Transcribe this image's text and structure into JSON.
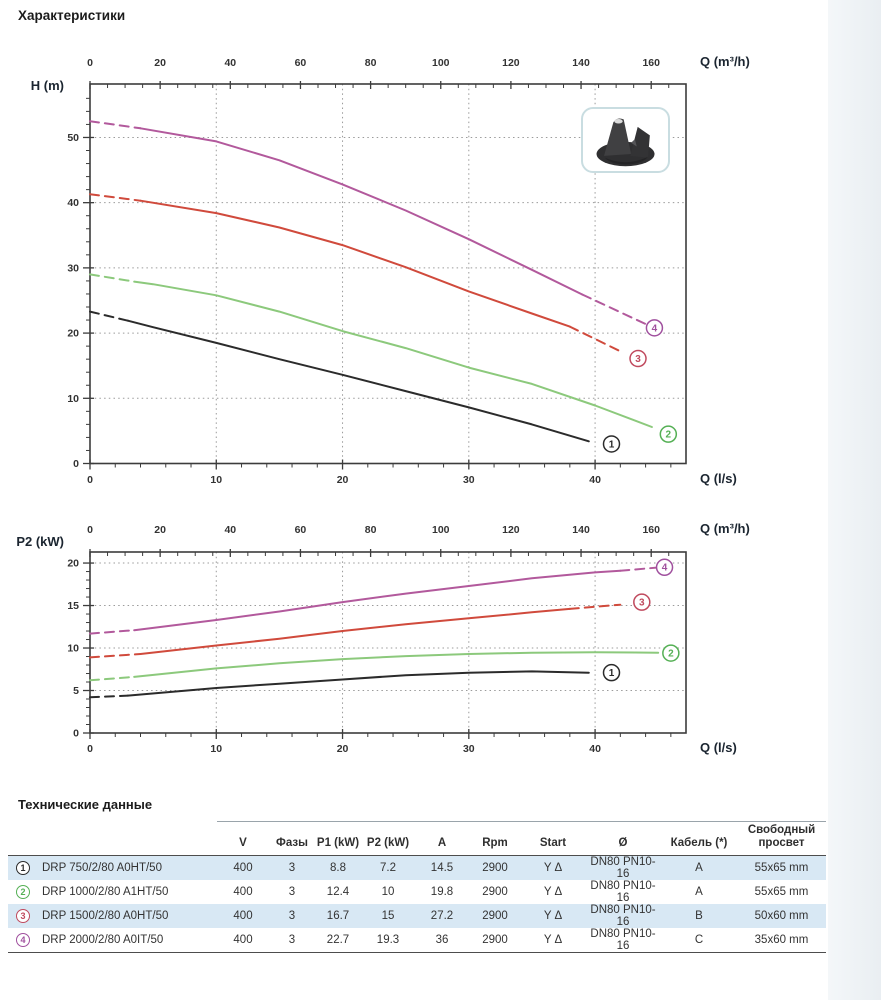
{
  "page": {
    "title": "Характеристики"
  },
  "pump_image": {
    "alt": "vortex-impeller-photo"
  },
  "colors": {
    "accent_row_blue": "#d8e8f4",
    "curve1": "#2b2b2b",
    "curve2": "#8cc97c",
    "curve3": "#d04a3c",
    "curve4": "#b2599c",
    "circle1": "#2b2b2b",
    "circle2": "#55b055",
    "circle3": "#c04a5e",
    "circle4": "#a0509e"
  },
  "chart_data": [
    {
      "type": "line",
      "id": "chart1",
      "ylabel": "H (m)",
      "xlabel_top": "Q (m³/h)",
      "xlabel_bottom": "Q (l/s)",
      "x_top_ticks": [
        0,
        20,
        40,
        60,
        80,
        100,
        120,
        140,
        160
      ],
      "x_bottom_ticks": [
        0,
        10,
        20,
        30,
        40
      ],
      "y_ticks": [
        0,
        10,
        20,
        30,
        40,
        50
      ],
      "xlim": [
        0,
        47.2
      ],
      "ylim": [
        0,
        58.2
      ],
      "grid_x": [
        10,
        20,
        30,
        40
      ],
      "grid_y": [
        10,
        20,
        30,
        40,
        50
      ],
      "grid": "dotted",
      "series": [
        {
          "num": "1",
          "name": "DRP 750/2/80 A0HT/50",
          "color": "#2b2b2b",
          "circle_color": "#2b2b2b",
          "lead": [
            [
              0,
              23.3
            ],
            [
              3,
              21.9
            ]
          ],
          "main": [
            [
              3,
              21.9
            ],
            [
              5,
              20.9
            ],
            [
              10,
              18.5
            ],
            [
              15,
              16.0
            ],
            [
              20,
              13.6
            ],
            [
              25,
              11.1
            ],
            [
              30,
              8.6
            ],
            [
              35,
              6.0
            ],
            [
              39.5,
              3.4
            ]
          ],
          "tail": [],
          "label_at": [
            41.3,
            3.0
          ]
        },
        {
          "num": "2",
          "name": "DRP 1000/2/80 A1HT/50",
          "color": "#8cc97c",
          "circle_color": "#55b055",
          "lead": [
            [
              0,
              29.0
            ],
            [
              3.5,
              27.9
            ]
          ],
          "main": [
            [
              3.5,
              27.9
            ],
            [
              5,
              27.5
            ],
            [
              10,
              25.8
            ],
            [
              15,
              23.3
            ],
            [
              20,
              20.3
            ],
            [
              25,
              17.7
            ],
            [
              30,
              14.7
            ],
            [
              35,
              12.2
            ],
            [
              40,
              8.9
            ],
            [
              44.5,
              5.6
            ]
          ],
          "tail": [],
          "label_at": [
            45.8,
            4.5
          ]
        },
        {
          "num": "3",
          "name": "DRP 1500/2/80 A0HT/50",
          "color": "#d04a3c",
          "circle_color": "#c04a5e",
          "lead": [
            [
              0,
              41.3
            ],
            [
              4,
              40.3
            ]
          ],
          "main": [
            [
              4,
              40.3
            ],
            [
              10,
              38.4
            ],
            [
              15,
              36.2
            ],
            [
              20,
              33.5
            ],
            [
              25,
              30.1
            ],
            [
              30,
              26.4
            ],
            [
              35,
              23.0
            ],
            [
              38,
              21.0
            ]
          ],
          "tail": [
            [
              38,
              21.0
            ],
            [
              42,
              17.2
            ]
          ],
          "label_at": [
            43.4,
            16.1
          ]
        },
        {
          "num": "4",
          "name": "DRP 2000/2/80 A0IT/50",
          "color": "#b2599c",
          "circle_color": "#a0509e",
          "lead": [
            [
              0,
              52.5
            ],
            [
              4,
              51.4
            ]
          ],
          "main": [
            [
              4,
              51.4
            ],
            [
              10,
              49.4
            ],
            [
              15,
              46.5
            ],
            [
              20,
              42.8
            ],
            [
              25,
              38.8
            ],
            [
              30,
              34.4
            ],
            [
              35,
              29.7
            ],
            [
              39,
              25.9
            ]
          ],
          "tail": [
            [
              39,
              25.9
            ],
            [
              44,
              21.4
            ]
          ],
          "label_at": [
            44.7,
            20.8
          ]
        }
      ]
    },
    {
      "type": "line",
      "id": "chart2",
      "ylabel": "P2 (kW)",
      "xlabel_top": "Q (m³/h)",
      "xlabel_bottom": "Q (l/s)",
      "x_top_ticks": [
        0,
        20,
        40,
        60,
        80,
        100,
        120,
        140,
        160
      ],
      "x_bottom_ticks": [
        0,
        10,
        20,
        30,
        40
      ],
      "y_ticks": [
        0,
        5,
        10,
        15,
        20
      ],
      "xlim": [
        0,
        47.2
      ],
      "ylim": [
        0,
        21.3
      ],
      "grid_x": [
        10,
        20,
        30,
        40
      ],
      "grid_y": [
        5,
        10,
        15,
        20
      ],
      "grid": "dotted",
      "series": [
        {
          "num": "1",
          "name": "DRP 750/2/80 A0HT/50",
          "color": "#2b2b2b",
          "circle_color": "#2b2b2b",
          "lead": [
            [
              0,
              4.2
            ],
            [
              3,
              4.4
            ]
          ],
          "main": [
            [
              3,
              4.4
            ],
            [
              10,
              5.3
            ],
            [
              15,
              5.8
            ],
            [
              20,
              6.3
            ],
            [
              25,
              6.8
            ],
            [
              30,
              7.1
            ],
            [
              35,
              7.25
            ],
            [
              39.5,
              7.1
            ]
          ],
          "tail": [],
          "label_at": [
            41.3,
            7.1
          ]
        },
        {
          "num": "2",
          "name": "DRP 1000/2/80 A1HT/50",
          "color": "#8cc97c",
          "circle_color": "#55b055",
          "lead": [
            [
              0,
              6.2
            ],
            [
              3.5,
              6.6
            ]
          ],
          "main": [
            [
              3.5,
              6.6
            ],
            [
              10,
              7.6
            ],
            [
              15,
              8.2
            ],
            [
              20,
              8.7
            ],
            [
              25,
              9.05
            ],
            [
              30,
              9.3
            ],
            [
              35,
              9.45
            ],
            [
              40,
              9.5
            ],
            [
              45,
              9.45
            ]
          ],
          "tail": [],
          "label_at": [
            46,
            9.4
          ]
        },
        {
          "num": "3",
          "name": "DRP 1500/2/80 A0HT/50",
          "color": "#d04a3c",
          "circle_color": "#c04a5e",
          "lead": [
            [
              0,
              8.9
            ],
            [
              4,
              9.3
            ]
          ],
          "main": [
            [
              4,
              9.3
            ],
            [
              10,
              10.3
            ],
            [
              15,
              11.1
            ],
            [
              20,
              12.0
            ],
            [
              25,
              12.8
            ],
            [
              30,
              13.5
            ],
            [
              35,
              14.2
            ],
            [
              38,
              14.6
            ]
          ],
          "tail": [
            [
              38,
              14.6
            ],
            [
              42,
              15.1
            ]
          ],
          "label_at": [
            43.7,
            15.4
          ]
        },
        {
          "num": "4",
          "name": "DRP 2000/2/80 A0IT/50",
          "color": "#b2599c",
          "circle_color": "#a0509e",
          "lead": [
            [
              0,
              11.7
            ],
            [
              3.5,
              12.1
            ]
          ],
          "main": [
            [
              3.5,
              12.1
            ],
            [
              10,
              13.3
            ],
            [
              15,
              14.3
            ],
            [
              20,
              15.4
            ],
            [
              25,
              16.4
            ],
            [
              30,
              17.3
            ],
            [
              35,
              18.2
            ],
            [
              40,
              18.9
            ],
            [
              42,
              19.1
            ]
          ],
          "tail": [
            [
              42,
              19.1
            ],
            [
              45.2,
              19.5
            ]
          ],
          "label_at": [
            45.5,
            19.5
          ]
        }
      ]
    }
  ],
  "table": {
    "title": "Технические данные",
    "headers": [
      "V",
      "Фазы",
      "P1 (kW)",
      "P2 (kW)",
      "A",
      "Rpm",
      "Start",
      "Ø",
      "Кабель (*)",
      "Свободный просвет"
    ],
    "rows": [
      {
        "num": "1",
        "circle_color": "#2b2b2b",
        "model": "DRP 750/2/80 A0HT/50",
        "values": [
          "400",
          "3",
          "8.8",
          "7.2",
          "14.5",
          "2900",
          "Y Δ",
          "DN80 PN10-16",
          "A",
          "55x65 mm"
        ]
      },
      {
        "num": "2",
        "circle_color": "#55b055",
        "model": "DRP 1000/2/80 A1HT/50",
        "values": [
          "400",
          "3",
          "12.4",
          "10",
          "19.8",
          "2900",
          "Y Δ",
          "DN80 PN10-16",
          "A",
          "55x65 mm"
        ]
      },
      {
        "num": "3",
        "circle_color": "#c04a5e",
        "model": "DRP 1500/2/80 A0HT/50",
        "values": [
          "400",
          "3",
          "16.7",
          "15",
          "27.2",
          "2900",
          "Y Δ",
          "DN80 PN10-16",
          "B",
          "50x60 mm"
        ]
      },
      {
        "num": "4",
        "circle_color": "#a0509e",
        "model": "DRP 2000/2/80 A0IT/50",
        "values": [
          "400",
          "3",
          "22.7",
          "19.3",
          "36",
          "2900",
          "Y Δ",
          "DN80 PN10-16",
          "C",
          "35x60 mm"
        ]
      }
    ]
  }
}
